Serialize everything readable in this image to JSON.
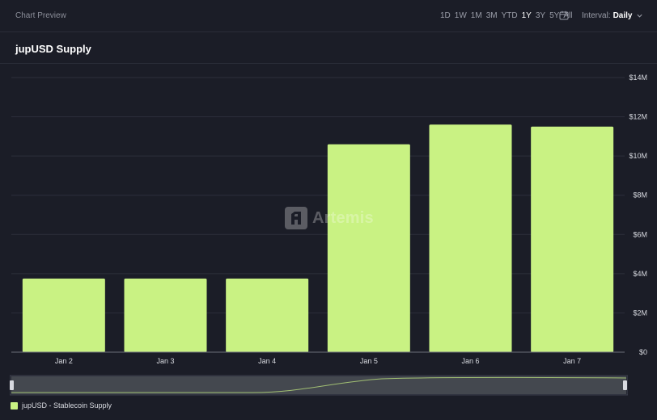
{
  "header": {
    "preview_label": "Chart Preview",
    "ranges": [
      "1D",
      "1W",
      "1M",
      "3M",
      "YTD",
      "1Y",
      "3Y",
      "5Y",
      "All"
    ],
    "active_range": "1Y",
    "interval_label": "Interval:",
    "interval_value": "Daily",
    "calendar_icon": "calendar-icon",
    "interval_icon": "chevron-down-icon"
  },
  "chart_title": "jupUSD Supply",
  "watermark": "Artemis",
  "chart_data": {
    "type": "bar",
    "title": "jupUSD Supply",
    "categories": [
      "Jan 2",
      "Jan 3",
      "Jan 4",
      "Jan 5",
      "Jan 6",
      "Jan 7"
    ],
    "series": [
      {
        "name": "jupUSD - Stablecoin Supply",
        "color": "#c9f283",
        "values": [
          3.75,
          3.75,
          3.75,
          10.6,
          11.6,
          11.5
        ]
      }
    ],
    "y_unit": "$M",
    "ylim": [
      0,
      14
    ],
    "y_ticks": [
      "$0",
      "$2M",
      "$4M",
      "$6M",
      "$8M",
      "$10M",
      "$12M",
      "$14M"
    ],
    "y_axis_side": "right",
    "grid": true,
    "legend_position": "bottom-left"
  },
  "colors": {
    "background": "#1b1d27",
    "bar": "#c9f283",
    "grid": "#2c2f3b"
  }
}
